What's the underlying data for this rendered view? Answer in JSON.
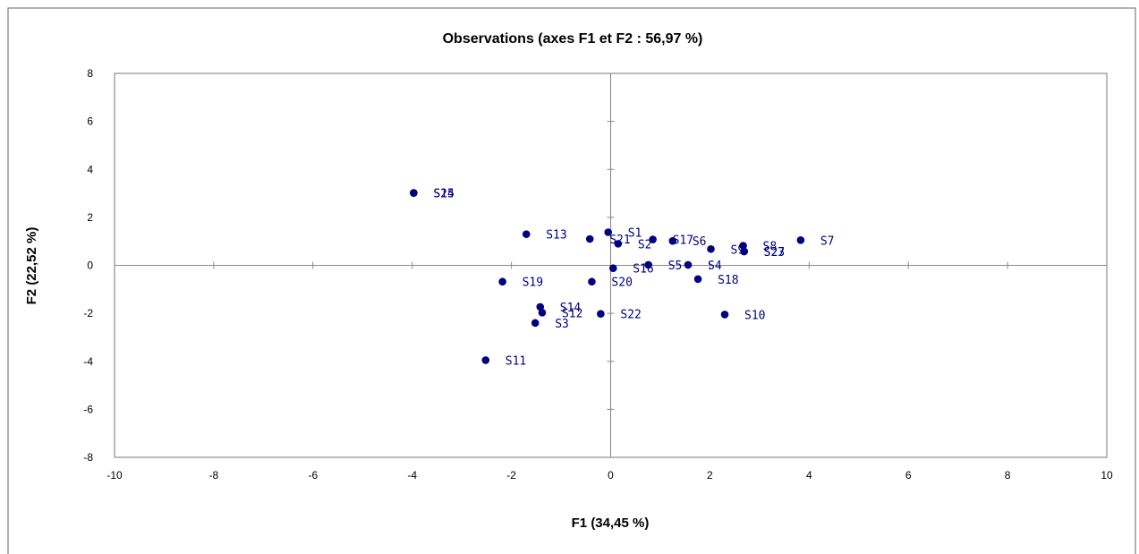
{
  "chart_data": {
    "type": "scatter",
    "title": "Observations (axes F1 et F2 : 56,97 %)",
    "xlabel": "F1 (34,45 %)",
    "ylabel": "F2 (22,52 %)",
    "xlim": [
      -10,
      10
    ],
    "ylim": [
      -8,
      8
    ],
    "x_ticks": [
      -10,
      -8,
      -6,
      -4,
      -2,
      0,
      2,
      4,
      6,
      8,
      10
    ],
    "y_ticks": [
      -8,
      -6,
      -4,
      -2,
      0,
      2,
      4,
      6,
      8
    ],
    "grid": false,
    "legend": "none",
    "series": [
      {
        "color": "#00007f",
        "points": [
          {
            "label": "S1",
            "x": -0.05,
            "y": 1.38
          },
          {
            "label": "S2",
            "x": 0.15,
            "y": 0.9
          },
          {
            "label": "S3",
            "x": -1.52,
            "y": -2.4
          },
          {
            "label": "S4",
            "x": 1.56,
            "y": 0.02
          },
          {
            "label": "S5",
            "x": 0.76,
            "y": 0.02
          },
          {
            "label": "S6",
            "x": 1.25,
            "y": 1.02
          },
          {
            "label": "S7",
            "x": 3.83,
            "y": 1.05
          },
          {
            "label": "S8",
            "x": 2.67,
            "y": 0.82
          },
          {
            "label": "S9",
            "x": 2.02,
            "y": 0.68
          },
          {
            "label": "S10",
            "x": 2.3,
            "y": -2.05
          },
          {
            "label": "S11",
            "x": -2.52,
            "y": -3.95
          },
          {
            "label": "S12",
            "x": -1.38,
            "y": -1.97
          },
          {
            "label": "S13",
            "x": -1.7,
            "y": 1.3
          },
          {
            "label": "S14",
            "x": -1.42,
            "y": -1.73
          },
          {
            "label": "S15",
            "x": -3.97,
            "y": 3.02
          },
          {
            "label": "S16",
            "x": 0.05,
            "y": -0.12
          },
          {
            "label": "S17",
            "x": 0.85,
            "y": 1.08
          },
          {
            "label": "S18",
            "x": 1.76,
            "y": -0.57
          },
          {
            "label": "S19",
            "x": -2.18,
            "y": -0.68
          },
          {
            "label": "S20",
            "x": -0.38,
            "y": -0.68
          },
          {
            "label": "S21",
            "x": -0.42,
            "y": 1.1
          },
          {
            "label": "S22",
            "x": -0.2,
            "y": -2.02
          },
          {
            "label": "S23",
            "x": 2.69,
            "y": 0.58
          },
          {
            "label": "S24",
            "x": -3.97,
            "y": 3.02
          },
          {
            "label": "S27",
            "x": 2.69,
            "y": 0.58
          }
        ]
      }
    ]
  }
}
